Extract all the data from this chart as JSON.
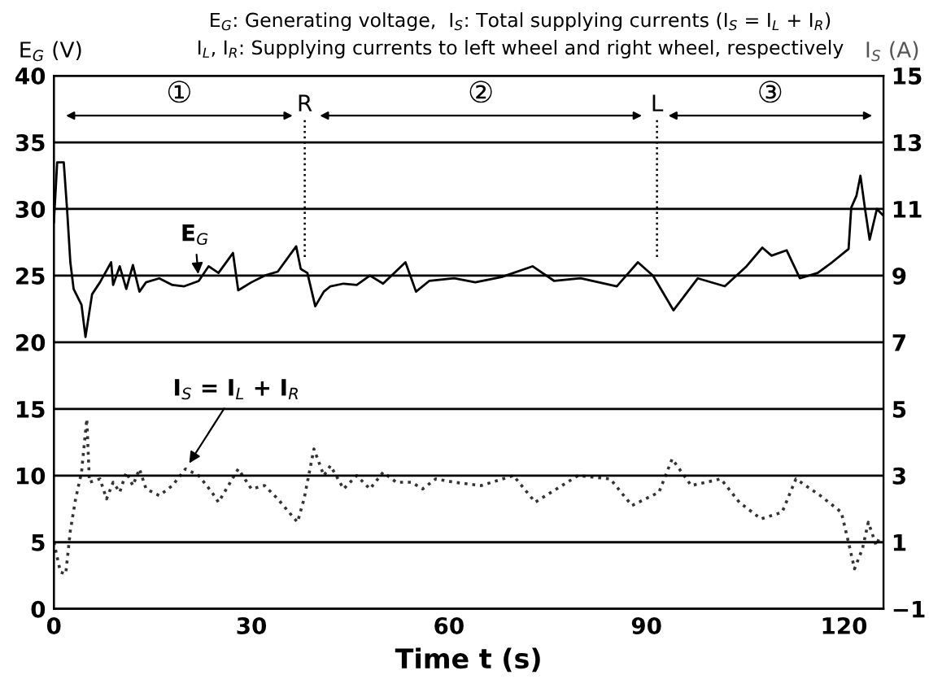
{
  "chart_data": {
    "type": "line",
    "title": "E$_{G}$: Generating voltage,  I$_{S}$: Total supplying currents (I$_{S}$ = I$_{L}$ + I$_{R}$)",
    "subtitle": "I$_{L}$, I$_{R}$: Supplying currents to left wheel and right wheel, respectively",
    "xlabel": "Time t (s)",
    "ylabel": "E$_{G}$ (V)",
    "y2label": "I$_{S}$ (A)",
    "xlim": [
      0,
      126
    ],
    "xticks": [
      0,
      30,
      60,
      90,
      120
    ],
    "ylim": [
      0,
      40
    ],
    "yticks": [
      0,
      5,
      10,
      15,
      20,
      25,
      30,
      35,
      40
    ],
    "y2lim": [
      -1,
      15
    ],
    "y2ticks": [
      -1,
      1,
      3,
      5,
      7,
      9,
      11,
      13,
      15
    ],
    "grid": "y",
    "legend": false,
    "marker": "none",
    "series": [
      {
        "name": "E$_{G}$",
        "color": "#000000",
        "line_style": "solid",
        "x": [
          0,
          0.5,
          1.5,
          2,
          2.5,
          3,
          4.2,
          4.8,
          5.8,
          7,
          8.7,
          9,
          10,
          11,
          12,
          13,
          14,
          16,
          18,
          19.8,
          22,
          23.5,
          25,
          27.2,
          28,
          30,
          32,
          34,
          36.8,
          37.5,
          38.5,
          39.7,
          41,
          42,
          44,
          46,
          48,
          50,
          53.4,
          55,
          57,
          60.8,
          64,
          68,
          72.7,
          76,
          80,
          85.5,
          88.7,
          91,
          94.1,
          97.8,
          101.9,
          105.2,
          107.6,
          109,
          111.3,
          113.3,
          116,
          118.2,
          120.7,
          121.1,
          121.9,
          122.5,
          123.2,
          123.9,
          125,
          126
        ],
        "values": [
          29,
          33.5,
          33.5,
          30,
          26,
          24,
          22.8,
          20.4,
          23.6,
          24.5,
          26,
          24.3,
          25.7,
          24,
          25.8,
          23.8,
          24.5,
          24.8,
          24.3,
          24.2,
          24.6,
          25.7,
          25.2,
          26.7,
          23.9,
          24.5,
          25,
          25.3,
          27.2,
          25.5,
          25.2,
          22.7,
          23.8,
          24.2,
          24.4,
          24.3,
          25,
          24.4,
          26,
          23.8,
          24.6,
          24.8,
          24.5,
          24.9,
          25.7,
          24.6,
          24.8,
          24.2,
          26,
          25,
          22.4,
          24.8,
          24.2,
          25.7,
          27.1,
          26.5,
          26.9,
          24.8,
          25.2,
          26,
          27,
          30.1,
          31,
          32.5,
          30,
          27.7,
          30,
          29.5
        ]
      },
      {
        "name": "I$_{S}$ = I$_{L}$ + I$_{R}$",
        "color": "#333333",
        "line_style": "dotted",
        "axis": "y2",
        "x": [
          0,
          1,
          1.8,
          2.5,
          3.3,
          4.2,
          5,
          5.4,
          7,
          8,
          9,
          10,
          11,
          12,
          13,
          14,
          16,
          18,
          20,
          22,
          24,
          25,
          28,
          30,
          32,
          34,
          37,
          38,
          39.5,
          41,
          42,
          44,
          46,
          48,
          50,
          52,
          54.3,
          56,
          58,
          60.8,
          64.9,
          69.8,
          73.1,
          79.6,
          84.5,
          87.8,
          91.9,
          93.9,
          96.8,
          101.3,
          104.1,
          107.4,
          110.6,
          112.7,
          116.4,
          119.6,
          120.8,
          121.6,
          122.8,
          123.7,
          124.9,
          125.3
        ],
        "values": [
          1.0,
          0.1,
          0.05,
          1.35,
          2.3,
          3.1,
          4.7,
          2.8,
          2.9,
          2.3,
          2.8,
          2.5,
          3.1,
          2.7,
          3.2,
          2.6,
          2.4,
          2.7,
          3.2,
          3.0,
          2.5,
          2.2,
          3.2,
          2.6,
          2.7,
          2.3,
          1.6,
          2.3,
          3.8,
          3.0,
          3.3,
          2.6,
          3.0,
          2.6,
          3.1,
          2.8,
          2.8,
          2.6,
          2.9,
          2.8,
          2.7,
          3.0,
          2.2,
          3.0,
          2.9,
          2.1,
          2.5,
          3.5,
          2.7,
          2.9,
          2.2,
          1.7,
          1.9,
          2.9,
          2.4,
          1.9,
          0.9,
          0.2,
          0.8,
          1.6,
          0.9,
          1.1
        ]
      }
    ],
    "ref_lines": [
      {
        "axis": "x",
        "value": 38.1,
        "label": "R",
        "line_style": "dotted"
      },
      {
        "axis": "x",
        "value": 91.6,
        "label": "L",
        "line_style": "dotted"
      }
    ],
    "annotations": [
      "①",
      "②",
      "③"
    ]
  }
}
